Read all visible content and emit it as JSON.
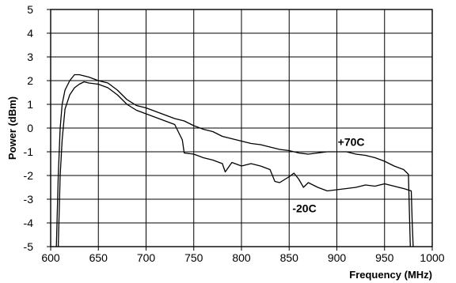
{
  "chart_data": {
    "type": "line",
    "title": "",
    "xlabel": "Frequency (MHz)",
    "ylabel": "Power (dBm)",
    "xlim": [
      600,
      1000
    ],
    "ylim": [
      -5,
      5
    ],
    "xticks": [
      600,
      650,
      700,
      750,
      800,
      850,
      900,
      950,
      1000
    ],
    "yticks": [
      -5,
      -4,
      -3,
      -2,
      -1,
      0,
      1,
      2,
      3,
      4,
      5
    ],
    "grid": true,
    "legend": "none",
    "colors": {
      "line": "#000000",
      "grid": "#000000",
      "background": "#ffffff"
    },
    "annotations": [
      {
        "text": "+70C",
        "x": 915,
        "y": -0.75
      },
      {
        "text": "-20C",
        "x": 866,
        "y": -3.55
      }
    ],
    "series": [
      {
        "x": [
          606,
          608,
          610,
          612,
          615,
          620,
          625,
          630,
          635,
          640,
          650,
          660,
          670,
          680,
          690,
          700,
          710,
          720,
          730,
          740,
          750,
          760,
          770,
          780,
          790,
          800,
          810,
          820,
          830,
          840,
          850,
          860,
          870,
          880,
          890,
          900,
          910,
          920,
          930,
          940,
          950,
          960,
          970,
          975,
          976,
          977
        ],
        "y": [
          -5,
          -2,
          0,
          1.0,
          1.6,
          2.0,
          2.25,
          2.25,
          2.2,
          2.15,
          2.0,
          1.9,
          1.6,
          1.2,
          0.95,
          0.85,
          0.7,
          0.55,
          0.4,
          0.3,
          0.1,
          -0.05,
          -0.15,
          -0.35,
          -0.45,
          -0.55,
          -0.65,
          -0.7,
          -0.8,
          -0.9,
          -0.95,
          -1.05,
          -1.1,
          -1.05,
          -1.0,
          -1.0,
          -1.0,
          -1.1,
          -1.15,
          -1.25,
          -1.4,
          -1.6,
          -1.75,
          -1.95,
          -3.5,
          -5
        ]
      },
      {
        "x": [
          608,
          610,
          612,
          615,
          620,
          625,
          630,
          635,
          640,
          650,
          660,
          670,
          680,
          690,
          700,
          710,
          720,
          730,
          738,
          740,
          750,
          760,
          770,
          780,
          783,
          790,
          800,
          810,
          820,
          830,
          835,
          840,
          850,
          855,
          860,
          865,
          870,
          880,
          890,
          900,
          910,
          920,
          930,
          940,
          950,
          960,
          970,
          978,
          979,
          980
        ],
        "y": [
          -5,
          -2,
          -0.5,
          0.8,
          1.4,
          1.7,
          1.85,
          1.95,
          1.9,
          1.85,
          1.7,
          1.4,
          1.0,
          0.75,
          0.6,
          0.45,
          0.3,
          0.15,
          -0.5,
          -1.05,
          -1.1,
          -1.25,
          -1.35,
          -1.5,
          -1.85,
          -1.45,
          -1.6,
          -1.5,
          -1.6,
          -1.75,
          -2.25,
          -2.3,
          -2.05,
          -1.9,
          -2.15,
          -2.5,
          -2.3,
          -2.5,
          -2.65,
          -2.6,
          -2.55,
          -2.5,
          -2.4,
          -2.45,
          -2.35,
          -2.45,
          -2.55,
          -2.65,
          -4.0,
          -5
        ]
      }
    ]
  }
}
